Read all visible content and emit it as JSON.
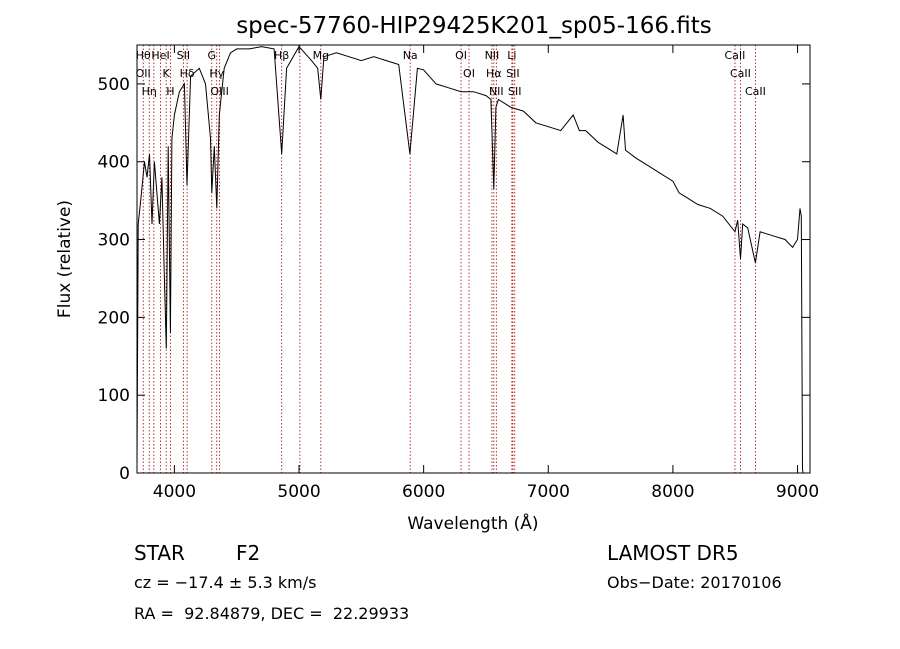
{
  "chart_data": {
    "type": "line",
    "title": "spec-57760-HIP29425K201_sp05-166.fits",
    "xlabel": "Wavelength (Å)",
    "ylabel": "Flux (relative)",
    "xlim": [
      3700,
      9100
    ],
    "ylim": [
      0,
      550
    ],
    "xticks": [
      4000,
      5000,
      6000,
      7000,
      8000,
      9000
    ],
    "yticks": [
      0,
      100,
      200,
      300,
      400,
      500
    ],
    "grid": false,
    "series": [
      {
        "color": "#000000",
        "x": [
          3700,
          3710,
          3730,
          3760,
          3780,
          3800,
          3820,
          3840,
          3860,
          3880,
          3900,
          3920,
          3935,
          3950,
          3968,
          3980,
          4000,
          4040,
          4080,
          4101,
          4130,
          4200,
          4250,
          4290,
          4300,
          4320,
          4340,
          4360,
          4400,
          4450,
          4500,
          4600,
          4700,
          4800,
          4861,
          4900,
          5000,
          5100,
          5150,
          5175,
          5200,
          5300,
          5400,
          5500,
          5600,
          5700,
          5800,
          5890,
          5950,
          6000,
          6100,
          6200,
          6300,
          6400,
          6500,
          6540,
          6563,
          6580,
          6600,
          6700,
          6800,
          6900,
          7000,
          7100,
          7200,
          7250,
          7300,
          7400,
          7500,
          7550,
          7600,
          7620,
          7700,
          7800,
          7900,
          8000,
          8050,
          8100,
          8200,
          8300,
          8400,
          8498,
          8520,
          8542,
          8560,
          8600,
          8662,
          8700,
          8800,
          8900,
          8960,
          9000,
          9020,
          9030,
          9040,
          9045
        ],
        "y": [
          10,
          320,
          350,
          400,
          380,
          410,
          320,
          400,
          360,
          320,
          380,
          250,
          160,
          420,
          180,
          430,
          460,
          490,
          500,
          370,
          510,
          520,
          500,
          430,
          360,
          420,
          340,
          460,
          520,
          540,
          545,
          545,
          548,
          545,
          410,
          520,
          548,
          530,
          520,
          480,
          535,
          540,
          535,
          530,
          535,
          530,
          525,
          410,
          520,
          518,
          500,
          495,
          490,
          490,
          485,
          480,
          365,
          470,
          480,
          470,
          465,
          450,
          445,
          440,
          460,
          440,
          440,
          425,
          415,
          410,
          460,
          415,
          405,
          395,
          385,
          375,
          360,
          355,
          345,
          340,
          330,
          310,
          325,
          275,
          320,
          315,
          270,
          310,
          305,
          300,
          290,
          300,
          340,
          330,
          5,
          0
        ]
      }
    ],
    "lines": [
      {
        "x": 3750,
        "labels": [
          "Hθ",
          "OII"
        ]
      },
      {
        "x": 3798,
        "labels": [
          "Hη"
        ]
      },
      {
        "x": 3835,
        "labels": []
      },
      {
        "x": 3889,
        "labels": [
          "HeI"
        ]
      },
      {
        "x": 3934,
        "labels": [
          "K"
        ]
      },
      {
        "x": 3968,
        "labels": [
          "H"
        ]
      },
      {
        "x": 4072,
        "labels": [
          "SII"
        ]
      },
      {
        "x": 4102,
        "labels": [
          "Hδ"
        ]
      },
      {
        "x": 4300,
        "labels": [
          "G"
        ]
      },
      {
        "x": 4340,
        "labels": [
          "Hγ"
        ]
      },
      {
        "x": 4363,
        "labels": [
          "OIII"
        ]
      },
      {
        "x": 4861,
        "labels": [
          "Hβ"
        ]
      },
      {
        "x": 5007,
        "labels": []
      },
      {
        "x": 5175,
        "labels": [
          "Mg"
        ]
      },
      {
        "x": 5892,
        "labels": [
          "Na"
        ]
      },
      {
        "x": 6300,
        "labels": [
          "OI"
        ]
      },
      {
        "x": 6364,
        "labels": [
          "OI"
        ]
      },
      {
        "x": 6548,
        "labels": [
          "NII"
        ]
      },
      {
        "x": 6563,
        "labels": [
          "Hα"
        ]
      },
      {
        "x": 6583,
        "labels": [
          "NII"
        ]
      },
      {
        "x": 6708,
        "labels": [
          "Li"
        ]
      },
      {
        "x": 6716,
        "labels": [
          "SII"
        ]
      },
      {
        "x": 6731,
        "labels": [
          "SII"
        ]
      },
      {
        "x": 8498,
        "labels": [
          "CaII"
        ]
      },
      {
        "x": 8542,
        "labels": [
          "CaII"
        ]
      },
      {
        "x": 8662,
        "labels": [
          "CaII"
        ]
      }
    ],
    "line_label_color": "#000000",
    "line_marker_color": "#aa0000"
  },
  "info": {
    "class": "STAR",
    "subclass": "F2",
    "survey": "LAMOST DR5",
    "cz": "cz = −17.4 ± 5.3 km/s",
    "obs_date": "Obs−Date: 20170106",
    "radec": "RA =  92.84879, DEC =  22.29933"
  }
}
